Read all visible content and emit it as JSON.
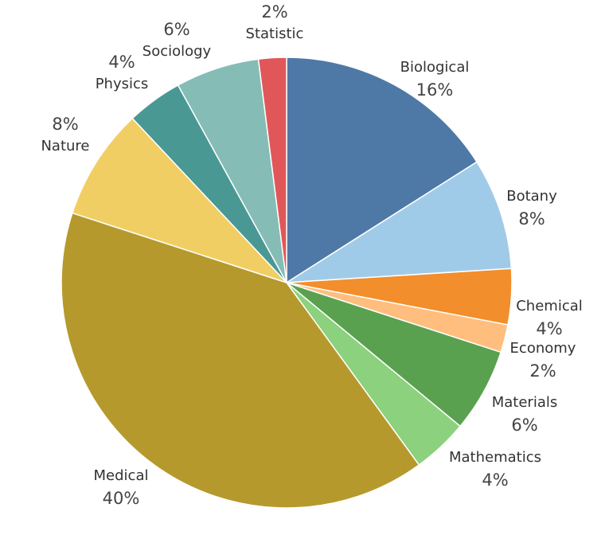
{
  "chart_data": {
    "type": "pie",
    "title": "",
    "start_angle_deg": 0,
    "direction": "clockwise",
    "legend": "none",
    "slices": [
      {
        "label": "Biological",
        "value": 16,
        "value_label": "16%",
        "color": "#4e79a7"
      },
      {
        "label": "Botany",
        "value": 8,
        "value_label": "8%",
        "color": "#a0cbe8"
      },
      {
        "label": "Chemical",
        "value": 4,
        "value_label": "4%",
        "color": "#f28e2b"
      },
      {
        "label": "Economy",
        "value": 2,
        "value_label": "2%",
        "color": "#ffbe7d"
      },
      {
        "label": "Materials",
        "value": 6,
        "value_label": "6%",
        "color": "#59a14f"
      },
      {
        "label": "Mathematics",
        "value": 4,
        "value_label": "4%",
        "color": "#8cd17d"
      },
      {
        "label": "Medical",
        "value": 40,
        "value_label": "40%",
        "color": "#b6992d"
      },
      {
        "label": "Nature",
        "value": 8,
        "value_label": "8%",
        "color": "#f1ce63"
      },
      {
        "label": "Physics",
        "value": 4,
        "value_label": "4%",
        "color": "#499894"
      },
      {
        "label": "Sociology",
        "value": 6,
        "value_label": "6%",
        "color": "#86bcb6"
      },
      {
        "label": "Statistic",
        "value": 2,
        "value_label": "2%",
        "color": "#e15759"
      }
    ]
  }
}
